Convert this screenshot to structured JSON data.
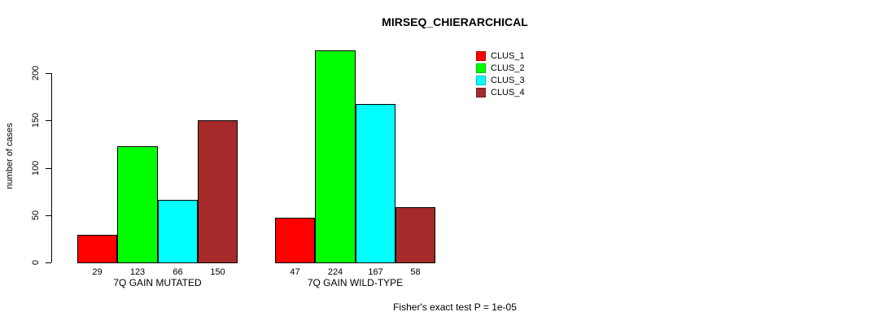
{
  "title": "MIRSEQ_CHIERARCHICAL",
  "ylabel": "number of cases",
  "footer": "Fisher's exact test P = 1e-05",
  "legend": {
    "items": [
      {
        "label": "CLUS_1",
        "color": "#FF0000"
      },
      {
        "label": "CLUS_2",
        "color": "#00FF00"
      },
      {
        "label": "CLUS_3",
        "color": "#00FFFF"
      },
      {
        "label": "CLUS_4",
        "color": "#A52A2A"
      }
    ]
  },
  "chart_data": {
    "type": "bar",
    "title": "MIRSEQ_CHIERARCHICAL",
    "xlabel": "",
    "ylabel": "number of cases",
    "categories": [
      "7Q GAIN MUTATED",
      "7Q GAIN WILD-TYPE"
    ],
    "series": [
      {
        "name": "CLUS_1",
        "color": "#FF0000",
        "values": [
          29,
          47
        ]
      },
      {
        "name": "CLUS_2",
        "color": "#00FF00",
        "values": [
          123,
          224
        ]
      },
      {
        "name": "CLUS_3",
        "color": "#00FFFF",
        "values": [
          66,
          167
        ]
      },
      {
        "name": "CLUS_4",
        "color": "#A52A2A",
        "values": [
          150,
          58
        ]
      }
    ],
    "bar_value_labels": [
      [
        29,
        123,
        66,
        150
      ],
      [
        47,
        224,
        167,
        58
      ]
    ],
    "yticks": [
      0,
      50,
      100,
      150,
      200
    ],
    "ylim": [
      0,
      224
    ],
    "grid": false,
    "legend_position": "top-right",
    "annotation": "Fisher's exact test P = 1e-05"
  }
}
